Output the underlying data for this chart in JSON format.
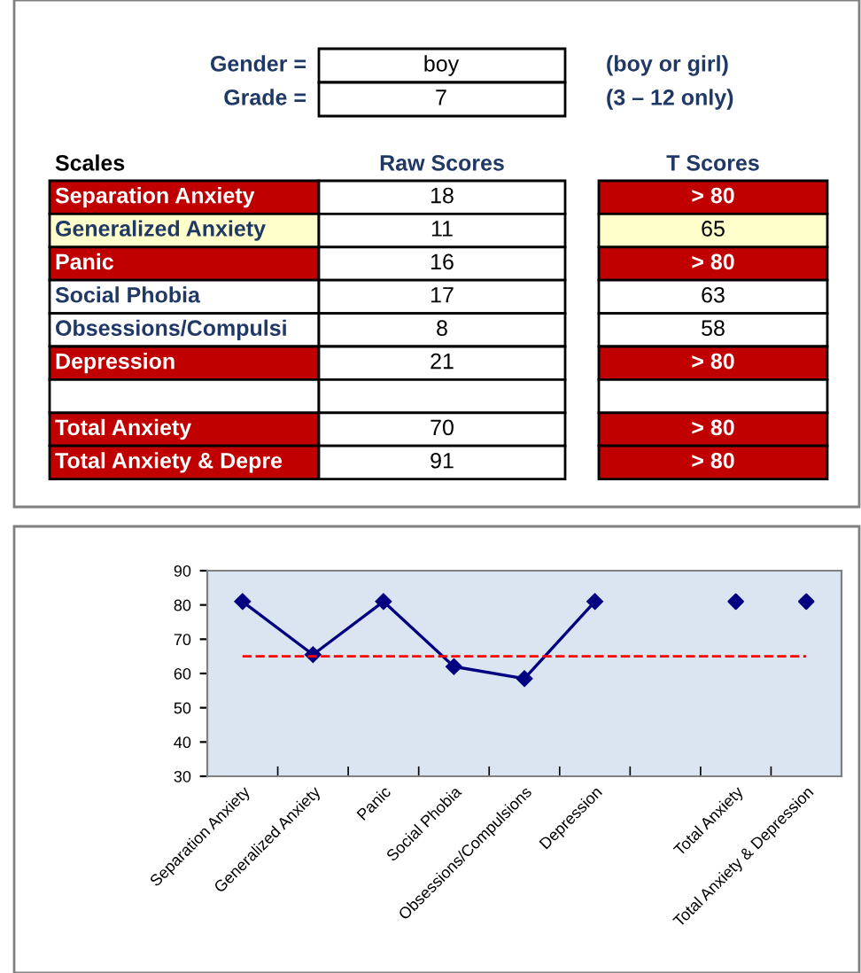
{
  "chart_data": [
    {
      "type": "other",
      "annotations": [
        "Gender =",
        "boy",
        "(boy or girl)",
        "Grade =",
        "7",
        "(3 – 12 only)",
        "Scales"
      ],
      "categories": [
        "Separation Anxiety",
        "Generalized Anxiety",
        "Panic",
        "Social Phobia",
        "Obsessions/Compulsi",
        "Depression",
        null,
        "Total Anxiety",
        "Total Anxiety & Depre"
      ],
      "series": [
        {
          "name": "Raw Scores",
          "values": [
            18,
            11,
            16,
            17,
            8,
            21,
            null,
            70,
            91
          ]
        },
        {
          "name": "T Scores",
          "colors": [
            "#c00000",
            "#ffffcc",
            "#c00000",
            "#ffffff",
            "#ffffff",
            "#c00000",
            "#ffffff",
            "#c00000",
            "#c00000"
          ],
          "values": [
            null,
            65,
            null,
            63,
            58,
            null,
            null,
            null,
            null
          ],
          "value_labels": [
            "> 80",
            "65",
            "> 80",
            "63",
            "58",
            "> 80",
            null,
            "> 80",
            "> 80"
          ]
        }
      ],
      "data_labels": true
    },
    {
      "type": "line",
      "categories": [
        "Separation Anxiety",
        "Generalized Anxiety",
        "Panic",
        "Social Phobia",
        "Obsessions/Compulsions",
        "Depression",
        null,
        "Total Anxiety",
        "Total Anxiety & Depression"
      ],
      "series": [
        {
          "color": "#000080",
          "values": [
            81,
            65.5,
            81,
            62,
            58.5,
            81,
            null,
            null,
            null
          ]
        },
        {
          "type": "scatter",
          "color": "#000080",
          "values": [
            null,
            null,
            null,
            null,
            null,
            null,
            null,
            81,
            81
          ]
        }
      ],
      "ylim": [
        30,
        90
      ],
      "yticks": [
        30,
        40,
        50,
        60,
        70,
        80,
        90
      ],
      "ref_lines": [
        {
          "axis": "y",
          "value": 65,
          "color": "#ff0000",
          "line_style": "dashed"
        }
      ],
      "marker": "diamond",
      "line_style": "solid",
      "grid": false,
      "legend": false
    }
  ]
}
